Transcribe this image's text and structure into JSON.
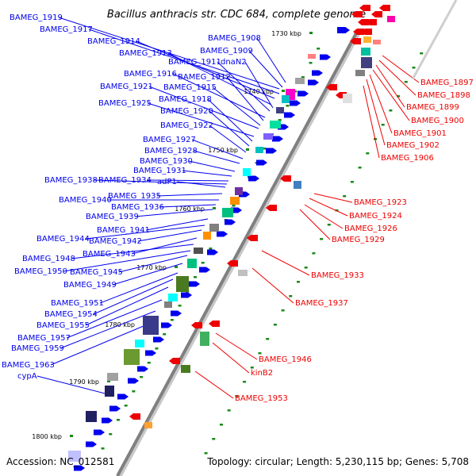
{
  "title": "Bacillus anthracis str. CDC 684, complete genome",
  "footer": {
    "accession": "Accession: NC_012581",
    "summary": "Topology: circular; Length: 5,230,115 bp; Genes: 5,708"
  },
  "colors": {
    "forward": "#0000ee",
    "reverse": "#ee0000",
    "backbone": "#808080",
    "tick": "#1a8a1a"
  },
  "ticks": [
    "1730 kbp",
    "1740 kbp",
    "1750 kbp",
    "1760 kbp",
    "1770 kbp",
    "1780 kbp",
    "1790 kbp",
    "1800 kbp"
  ],
  "forward_labels": [
    "BAMEG_1919",
    "BAMEG_1917",
    "BAMEG_1914",
    "BAMEG_1913",
    "BAMEG_1908",
    "BAMEG_1909",
    "BAMEG_1911",
    "dnaN2",
    "BAMEG_1916",
    "BAMEG_1912",
    "BAMEG_1921",
    "BAMEG_1915",
    "BAMEG_1925",
    "BAMEG_1918",
    "BAMEG_1920",
    "BAMEG_1922",
    "BAMEG_1927",
    "BAMEG_1928",
    "BAMEG_1930",
    "BAMEG_1931",
    "BAMEG_1938",
    "BAMEG_1934",
    "adP1",
    "BAMEG_1935",
    "BAMEG_1940",
    "BAMEG_1936",
    "BAMEG_1939",
    "BAMEG_1941",
    "BAMEG_1944",
    "BAMEG_1942",
    "BAMEG_1943",
    "BAMEG_1948",
    "BAMEG_1950",
    "BAMEG_1945",
    "BAMEG_1949",
    "BAMEG_1951",
    "BAMEG_1954",
    "BAMEG_1955",
    "BAMEG_1957",
    "BAMEG_1959",
    "BAMEG_1963",
    "cypA"
  ],
  "reverse_labels": [
    "BAMEG_1897",
    "BAMEG_1898",
    "BAMEG_1899",
    "BAMEG_1900",
    "BAMEG_1901",
    "BAMEG_1902",
    "BAMEG_1906",
    "BAMEG_1923",
    "BAMEG_1924",
    "BAMEG_1926",
    "BAMEG_1929",
    "BAMEG_1933",
    "BAMEG_1937",
    "BAMEG_1946",
    "kinB2",
    "BAMEG_1953"
  ]
}
